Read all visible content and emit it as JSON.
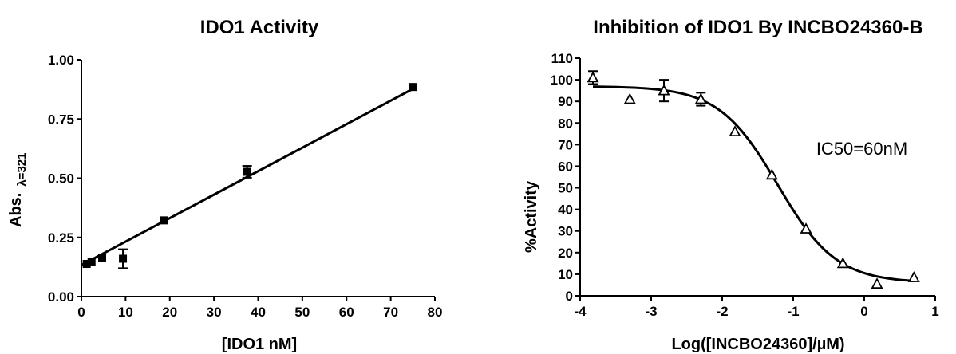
{
  "chart_data": [
    {
      "type": "scatter",
      "title": "IDO1 Activity",
      "xlabel": "[IDO1 nM]",
      "ylabel": "Abs.",
      "ylabel_sub": "λ=321",
      "xlim": [
        0,
        80
      ],
      "ylim": [
        0,
        1
      ],
      "xticks": [
        "0",
        "10",
        "20",
        "30",
        "40",
        "50",
        "60",
        "70",
        "80"
      ],
      "yticks": [
        "0.00",
        "0.25",
        "0.50",
        "0.75",
        "1.00"
      ],
      "marker": "filled-square",
      "points": [
        {
          "x": 1.2,
          "y": 0.138,
          "err": 0.01
        },
        {
          "x": 2.3,
          "y": 0.145,
          "err": 0.008
        },
        {
          "x": 4.7,
          "y": 0.163,
          "err": 0.008
        },
        {
          "x": 9.4,
          "y": 0.16,
          "err": 0.04
        },
        {
          "x": 18.75,
          "y": 0.322,
          "err": 0.01
        },
        {
          "x": 37.5,
          "y": 0.527,
          "err": 0.025
        },
        {
          "x": 75,
          "y": 0.885,
          "err": 0.008
        }
      ],
      "fit": {
        "type": "linear",
        "x_start": 0,
        "x_end": 75,
        "y_start": 0.133,
        "y_end": 0.877
      }
    },
    {
      "type": "scatter",
      "title": "Inhibition of IDO1 By INCBO24360-B",
      "xlabel": "Log([INCBO24360]/µM)",
      "ylabel": "%Activity",
      "xlim": [
        -4,
        1
      ],
      "ylim": [
        0,
        110
      ],
      "xticks": [
        "-4",
        "-3",
        "-2",
        "-1",
        "0",
        "1"
      ],
      "yticks": [
        "0",
        "10",
        "20",
        "30",
        "40",
        "50",
        "60",
        "70",
        "80",
        "90",
        "100",
        "110"
      ],
      "marker": "open-triangle",
      "annotation": "IC50=60nM",
      "points": [
        {
          "x": -3.82,
          "y": 101,
          "err": 3
        },
        {
          "x": -3.3,
          "y": 91,
          "err": 0
        },
        {
          "x": -2.82,
          "y": 95,
          "err": 5
        },
        {
          "x": -2.3,
          "y": 91,
          "err": 3
        },
        {
          "x": -1.82,
          "y": 76,
          "err": 0
        },
        {
          "x": -1.3,
          "y": 56,
          "err": 0
        },
        {
          "x": -0.82,
          "y": 31,
          "err": 0
        },
        {
          "x": -0.3,
          "y": 15,
          "err": 0
        },
        {
          "x": 0.18,
          "y": 5.5,
          "err": 0
        },
        {
          "x": 0.7,
          "y": 8.5,
          "err": 0
        }
      ],
      "fit": {
        "type": "four-parameter-logistic",
        "bottom": 6,
        "top": 97,
        "log_ic50": -1.22,
        "hill": 1.05,
        "x_start": -3.82,
        "x_end": 0.7
      }
    }
  ]
}
